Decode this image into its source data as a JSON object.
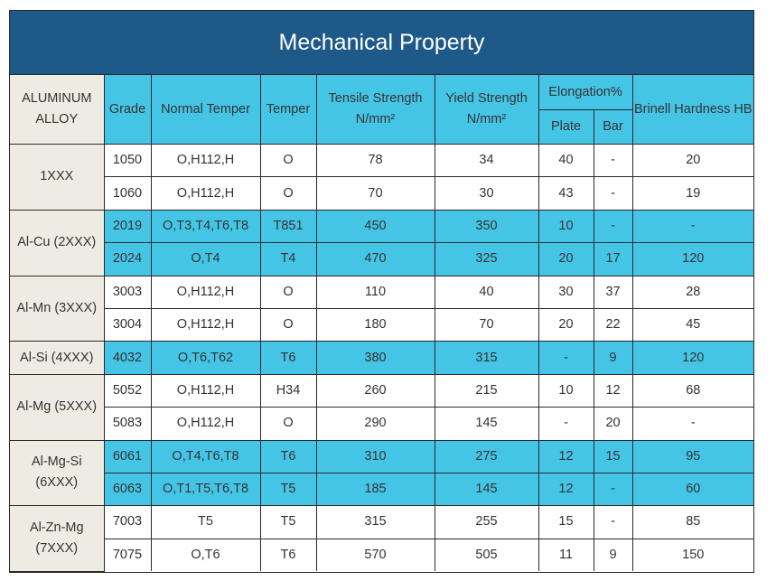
{
  "title": "Mechanical Property",
  "headers": {
    "alloy": "ALUMINUM ALLOY",
    "grade": "Grade",
    "normal_temper": "Normal Temper",
    "temper": "Temper",
    "tensile": "Tensile Strength N/mm²",
    "yield": "Yield Strength N/mm²",
    "elongation": "Elongation%",
    "plate": "Plate",
    "bar": "Bar",
    "brinell": "Brinell Hardness HB"
  },
  "groups": [
    {
      "alloy": "1XXX",
      "rows": [
        {
          "grade": "1050",
          "normal": "O,H112,H",
          "temper": "O",
          "tensile": "78",
          "yield": "34",
          "plate": "40",
          "bar": "-",
          "hb": "20"
        },
        {
          "grade": "1060",
          "normal": "O,H112,H",
          "temper": "O",
          "tensile": "70",
          "yield": "30",
          "plate": "43",
          "bar": "-",
          "hb": "19"
        }
      ]
    },
    {
      "alloy": "Al-Cu (2XXX)",
      "rows": [
        {
          "grade": "2019",
          "normal": "O,T3,T4,T6,T8",
          "temper": "T851",
          "tensile": "450",
          "yield": "350",
          "plate": "10",
          "bar": "-",
          "hb": "-"
        },
        {
          "grade": "2024",
          "normal": "O,T4",
          "temper": "T4",
          "tensile": "470",
          "yield": "325",
          "plate": "20",
          "bar": "17",
          "hb": "120"
        }
      ]
    },
    {
      "alloy": "Al-Mn (3XXX)",
      "rows": [
        {
          "grade": "3003",
          "normal": "O,H112,H",
          "temper": "O",
          "tensile": "110",
          "yield": "40",
          "plate": "30",
          "bar": "37",
          "hb": "28"
        },
        {
          "grade": "3004",
          "normal": "O,H112,H",
          "temper": "O",
          "tensile": "180",
          "yield": "70",
          "plate": "20",
          "bar": "22",
          "hb": "45"
        }
      ]
    },
    {
      "alloy": "Al-Si (4XXX)",
      "rows": [
        {
          "grade": "4032",
          "normal": "O,T6,T62",
          "temper": "T6",
          "tensile": "380",
          "yield": "315",
          "plate": "-",
          "bar": "9",
          "hb": "120"
        }
      ]
    },
    {
      "alloy": "Al-Mg (5XXX)",
      "rows": [
        {
          "grade": "5052",
          "normal": "O,H112,H",
          "temper": "H34",
          "tensile": "260",
          "yield": "215",
          "plate": "10",
          "bar": "12",
          "hb": "68"
        },
        {
          "grade": "5083",
          "normal": "O,H112,H",
          "temper": "O",
          "tensile": "290",
          "yield": "145",
          "plate": "-",
          "bar": "20",
          "hb": "-"
        }
      ]
    },
    {
      "alloy": "Al-Mg-Si (6XXX)",
      "rows": [
        {
          "grade": "6061",
          "normal": "O,T4,T6,T8",
          "temper": "T6",
          "tensile": "310",
          "yield": "275",
          "plate": "12",
          "bar": "15",
          "hb": "95"
        },
        {
          "grade": "6063",
          "normal": "O,T1,T5,T6,T8",
          "temper": "T5",
          "tensile": "185",
          "yield": "145",
          "plate": "12",
          "bar": "-",
          "hb": "60"
        }
      ]
    },
    {
      "alloy": "Al-Zn-Mg (7XXX)",
      "rows": [
        {
          "grade": "7003",
          "normal": "T5",
          "temper": "T5",
          "tensile": "315",
          "yield": "255",
          "plate": "15",
          "bar": "-",
          "hb": "85"
        },
        {
          "grade": "7075",
          "normal": "O,T6",
          "temper": "T6",
          "tensile": "570",
          "yield": "505",
          "plate": "11",
          "bar": "9",
          "hb": "150"
        }
      ]
    }
  ],
  "colors": {
    "title_bg": "#1d5a8a",
    "header_bg": "#45c5e6",
    "alloy_bg": "#eeebe3"
  }
}
